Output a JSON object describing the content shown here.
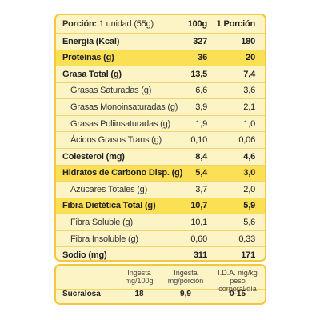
{
  "nutrition": {
    "header": {
      "label_prefix": "Porción:",
      "label_rest": " 1 unidad (55g)",
      "col1": "100g",
      "col2": "1 Porción"
    },
    "rows": [
      {
        "label": "Energía (Kcal)",
        "v1": "327",
        "v2": "180",
        "bold": true,
        "highlight": false,
        "sub": false
      },
      {
        "label": "Proteínas (g)",
        "v1": "36",
        "v2": "20",
        "bold": true,
        "highlight": true,
        "sub": false
      },
      {
        "label": "Grasa Total (g)",
        "v1": "13,5",
        "v2": "7,4",
        "bold": true,
        "highlight": false,
        "sub": false
      },
      {
        "label": "Grasas Saturadas (g)",
        "v1": "6,6",
        "v2": "3,6",
        "bold": false,
        "highlight": false,
        "sub": true
      },
      {
        "label": "Grasas Monoinsaturadas (g)",
        "v1": "3,9",
        "v2": "2,1",
        "bold": false,
        "highlight": false,
        "sub": true
      },
      {
        "label": "Grasas Poliinsaturadas (g)",
        "v1": "1,9",
        "v2": "1,0",
        "bold": false,
        "highlight": false,
        "sub": true
      },
      {
        "label": "Ácidos Grasos Trans (g)",
        "v1": "0,10",
        "v2": "0,06",
        "bold": false,
        "highlight": false,
        "sub": true
      },
      {
        "label": "Colesterol (mg)",
        "v1": "8,4",
        "v2": "4,6",
        "bold": true,
        "highlight": false,
        "sub": false
      },
      {
        "label": "Hidratos de Carbono Disp. (g)",
        "v1": "5,4",
        "v2": "3,0",
        "bold": true,
        "highlight": true,
        "sub": false
      },
      {
        "label": "Azúcares Totales (g)",
        "v1": "3,7",
        "v2": "2,0",
        "bold": false,
        "highlight": false,
        "sub": true
      },
      {
        "label": "Fibra Dietética Total (g)",
        "v1": "10,7",
        "v2": "5,9",
        "bold": true,
        "highlight": true,
        "sub": false
      },
      {
        "label": "Fibra Soluble (g)",
        "v1": "10,1",
        "v2": "5,6",
        "bold": false,
        "highlight": false,
        "sub": true
      },
      {
        "label": "Fibra Insoluble (g)",
        "v1": "0,60",
        "v2": "0,33",
        "bold": false,
        "highlight": false,
        "sub": true
      },
      {
        "label": "Sodio (mg)",
        "v1": "311",
        "v2": "171",
        "bold": true,
        "highlight": false,
        "sub": false
      }
    ]
  },
  "sweetener": {
    "headers": {
      "c1_line1": "Ingesta",
      "c1_line2": "mg/100g",
      "c2_line1": "Ingesta",
      "c2_line2": "mg/porción",
      "c3_line1": "I.D.A. mg/kg",
      "c3_line2": "peso corporal/día"
    },
    "row": {
      "name": "Sucralosa",
      "c1": "18",
      "c2": "9,9",
      "c3": "0-15"
    }
  },
  "colors": {
    "border": "#f3c83c",
    "panel_bg": "#fdf4c6",
    "highlight": "#fbdf55"
  }
}
